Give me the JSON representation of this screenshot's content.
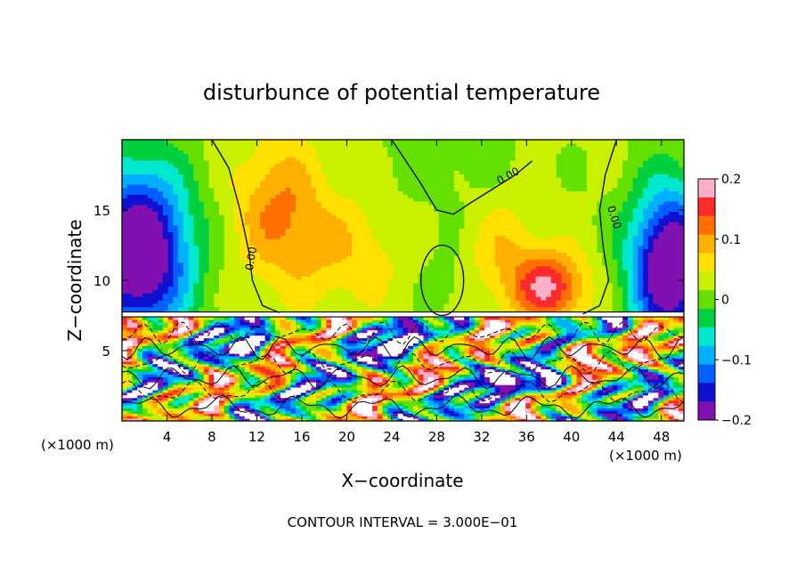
{
  "chart_data": {
    "type": "heatmap",
    "title": "disturbunce of potential temperature",
    "xlabel": "X−coordinate",
    "ylabel": "Z−coordinate",
    "x_unit": "(×1000 m)",
    "z_unit": "(×1000 m)",
    "footnote": "CONTOUR INTERVAL = 3.000E−01",
    "xlim": [
      0,
      50
    ],
    "ylim": [
      0,
      20
    ],
    "x_ticks": [
      4,
      8,
      12,
      16,
      20,
      24,
      28,
      32,
      36,
      40,
      44,
      48
    ],
    "x_tick_labels": [
      "4",
      "8",
      "12",
      "16",
      "20",
      "24",
      "28",
      "32",
      "36",
      "40",
      "44",
      "48"
    ],
    "y_ticks": [
      5,
      10,
      15
    ],
    "y_tick_labels": [
      "5",
      "10",
      "15"
    ],
    "colorbar": {
      "range": [
        -0.2,
        0.2
      ],
      "ticks": [
        0.2,
        0.1,
        0,
        -0.1,
        -0.2
      ],
      "tick_labels": [
        "0.2",
        "0.1",
        "0",
        "−0.1",
        "−0.2"
      ],
      "colors": [
        "#ffb0c8",
        "#ff2a2a",
        "#ff7000",
        "#ffb000",
        "#ffe000",
        "#c8f000",
        "#64e000",
        "#00d040",
        "#00e8d0",
        "#00b0ff",
        "#0060ff",
        "#1010d0",
        "#8010b0"
      ]
    },
    "contour_labels": [
      "0.00",
      "0.00",
      "0.00"
    ],
    "interface_height": 7.4,
    "features": [
      {
        "kind": "warm",
        "x": 14,
        "z": 16,
        "value": 0.12
      },
      {
        "kind": "warm",
        "x": 38,
        "z": 9.8,
        "value": 0.16
      },
      {
        "kind": "cold",
        "x": 2.5,
        "z": 10.5,
        "value": -0.2
      },
      {
        "kind": "cold",
        "x": 48.5,
        "z": 10,
        "value": -0.18
      },
      {
        "kind": "neutral",
        "x": 28.5,
        "z": 10,
        "value": 0.0
      },
      {
        "kind": "cold",
        "x": 11.5,
        "z": 5.2,
        "value": -0.16
      },
      {
        "kind": "cold",
        "x": 37,
        "z": 2.8,
        "value": -0.17
      }
    ]
  }
}
